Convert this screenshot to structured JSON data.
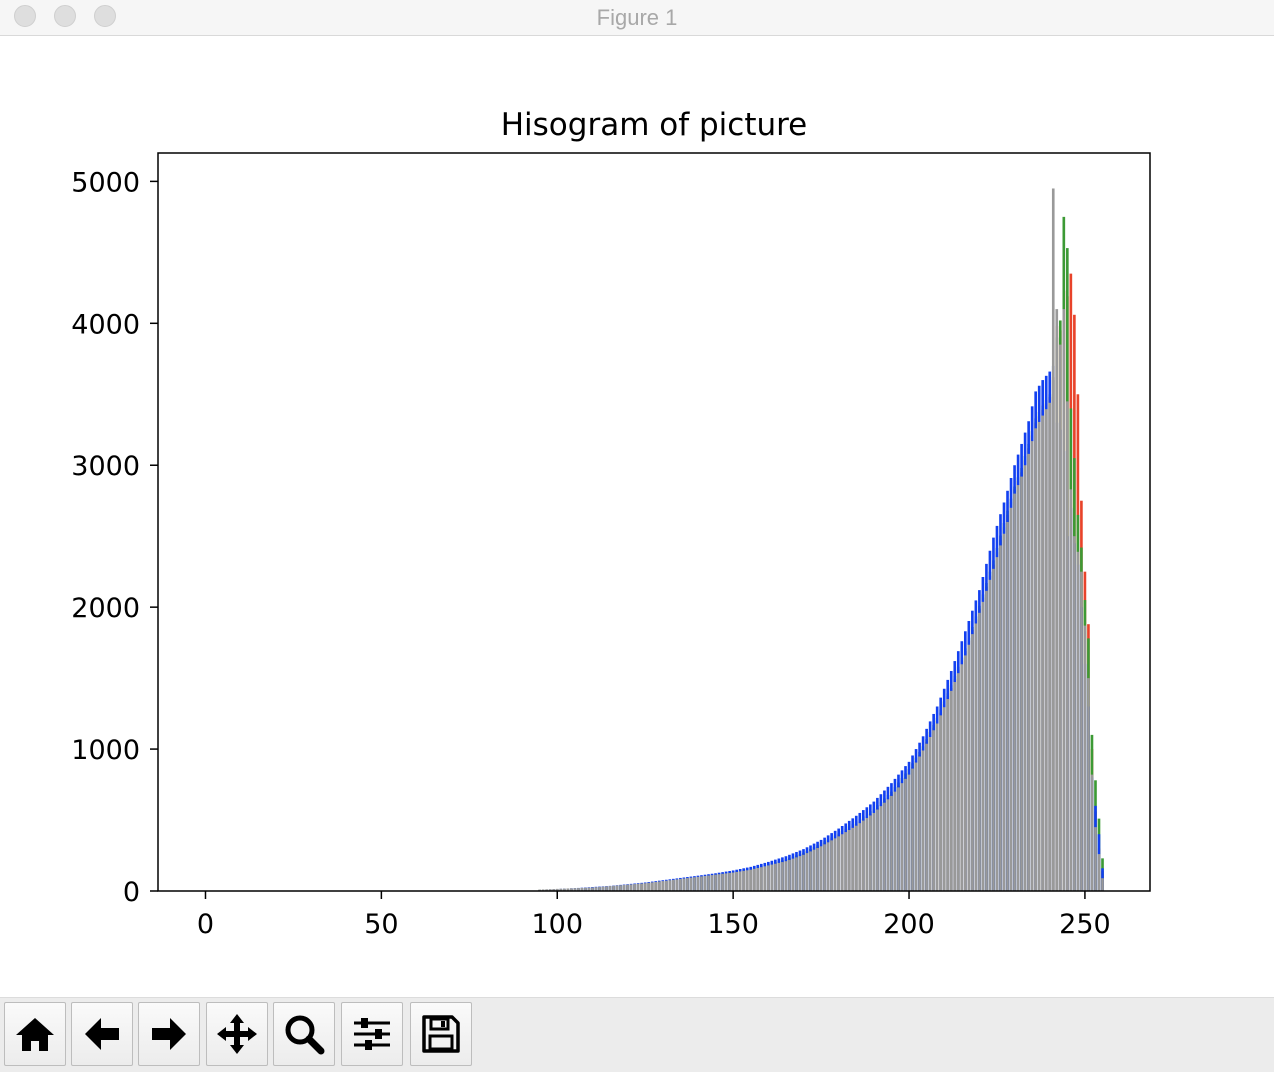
{
  "window": {
    "title": "Figure 1"
  },
  "toolbar": {
    "buttons": [
      {
        "name": "home-button",
        "icon": "home-icon"
      },
      {
        "name": "back-button",
        "icon": "arrow-left-icon"
      },
      {
        "name": "forward-button",
        "icon": "arrow-right-icon"
      },
      {
        "name": "pan-button",
        "icon": "move-icon"
      },
      {
        "name": "zoom-button",
        "icon": "magnifier-icon"
      },
      {
        "name": "subplots-button",
        "icon": "sliders-icon"
      },
      {
        "name": "save-button",
        "icon": "floppy-icon"
      }
    ]
  },
  "chart_data": {
    "type": "bar",
    "title": "Hisogram of picture",
    "xlabel": "",
    "ylabel": "",
    "xlim": [
      -13.5,
      268.5
    ],
    "ylim": [
      0,
      5200
    ],
    "xticks": [
      0,
      50,
      100,
      150,
      200,
      250
    ],
    "yticks": [
      0,
      1000,
      2000,
      3000,
      4000,
      5000
    ],
    "grid": false,
    "legend": "none",
    "series_colors": {
      "red": "#e8432a",
      "green": "#3c9a35",
      "blue": "#1240f0",
      "gray": "#999999"
    },
    "x": [
      95,
      100,
      105,
      110,
      115,
      120,
      125,
      130,
      135,
      140,
      145,
      150,
      155,
      160,
      165,
      170,
      175,
      180,
      185,
      190,
      195,
      200,
      204,
      208,
      212,
      216,
      220,
      224,
      228,
      230,
      232,
      234,
      236,
      238,
      240,
      241,
      242,
      243,
      244,
      245,
      246,
      247,
      248,
      249,
      250,
      251,
      252,
      253,
      254,
      255
    ],
    "series": [
      {
        "values": [
          5,
          10,
          14,
          20,
          28,
          38,
          52,
          66,
          80,
          95,
          112,
          130,
          150,
          180,
          215,
          260,
          320,
          390,
          470,
          560,
          680,
          830,
          1000,
          1200,
          1430,
          1690,
          1990,
          2300,
          2650,
          2830,
          2950,
          3120,
          3300,
          3390,
          3480,
          3620,
          3980,
          3950,
          4230,
          4190,
          4350,
          4060,
          3500,
          2750,
          2250,
          1880,
          1000,
          560,
          300,
          140
        ]
      },
      {
        "values": [
          8,
          12,
          18,
          24,
          32,
          42,
          56,
          70,
          85,
          100,
          118,
          135,
          160,
          190,
          225,
          270,
          335,
          405,
          490,
          580,
          700,
          860,
          1020,
          1220,
          1450,
          1710,
          2010,
          2330,
          2680,
          2850,
          2980,
          3150,
          3330,
          3420,
          3500,
          3600,
          3900,
          4020,
          4750,
          4530,
          3400,
          3050,
          2650,
          2420,
          2050,
          1780,
          1100,
          780,
          510,
          230
        ]
      },
      {
        "values": [
          6,
          14,
          20,
          28,
          36,
          48,
          60,
          76,
          92,
          108,
          125,
          145,
          170,
          205,
          245,
          295,
          360,
          440,
          530,
          630,
          760,
          910,
          1090,
          1300,
          1550,
          1830,
          2120,
          2490,
          2820,
          3000,
          3150,
          3310,
          3520,
          3600,
          3660,
          3700,
          3300,
          3250,
          3100,
          2500,
          2700,
          2450,
          2300,
          2000,
          1600,
          1300,
          800,
          600,
          400,
          160
        ]
      },
      {
        "values": [
          10,
          15,
          20,
          25,
          35,
          45,
          55,
          70,
          85,
          100,
          115,
          130,
          150,
          180,
          210,
          255,
          315,
          385,
          460,
          550,
          670,
          820,
          990,
          1180,
          1410,
          1660,
          1960,
          2270,
          2600,
          2800,
          2920,
          3080,
          3260,
          3350,
          3440,
          4950,
          4100,
          3850,
          4100,
          3450,
          2830,
          2500,
          2390,
          2250,
          1870,
          1500,
          820,
          450,
          260,
          90
        ]
      }
    ]
  }
}
